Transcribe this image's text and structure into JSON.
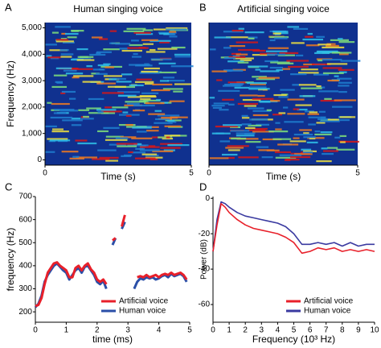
{
  "chart_data": [
    {
      "type": "spectrogram",
      "panel_label": "A",
      "title": "Human singing voice",
      "xlabel": "Time (s)",
      "ylabel": "Frequency (Hz)",
      "xlim": [
        0,
        5
      ],
      "xticks": [
        0,
        5
      ],
      "ylim": [
        -200,
        5200
      ],
      "yticks": [
        0,
        {
          "value": 1000,
          "label": "1,000"
        },
        {
          "value": 2000,
          "label": "2,000"
        },
        {
          "value": 3000,
          "label": "3,000"
        },
        {
          "value": 4000,
          "label": "4,000"
        },
        {
          "value": 5000,
          "label": "5,000"
        }
      ]
    },
    {
      "type": "spectrogram",
      "panel_label": "B",
      "title": "Artificial singing voice",
      "xlabel": "Time (s)",
      "xlim": [
        0,
        5
      ],
      "xticks": [
        0,
        5
      ]
    },
    {
      "type": "line",
      "panel_label": "C",
      "xlabel": "time (ms)",
      "ylabel": "frequency (Hz)",
      "xlim": [
        0,
        5
      ],
      "xticks": [
        0,
        1,
        2,
        3,
        4,
        5
      ],
      "ylim": [
        155,
        700
      ],
      "yticks": [
        200,
        300,
        400,
        500,
        600,
        700
      ],
      "legend": "lower right",
      "x": [
        0,
        0.1,
        0.2,
        0.3,
        0.4,
        0.5,
        0.6,
        0.7,
        0.8,
        0.9,
        1.0,
        1.1,
        1.2,
        1.3,
        1.4,
        1.5,
        1.6,
        1.7,
        1.8,
        1.9,
        2.0,
        2.1,
        2.2,
        2.3,
        2.4,
        2.5,
        2.6,
        2.7,
        2.8,
        2.9,
        3.0,
        3.1,
        3.2,
        3.3,
        3.4,
        3.5,
        3.6,
        3.7,
        3.8,
        3.9,
        4.0,
        4.1,
        4.2,
        4.3,
        4.4,
        4.5,
        4.6,
        4.7,
        4.8,
        4.9
      ],
      "series": [
        {
          "name": "Human voice",
          "color": "#2a4fa8",
          "values": [
            220,
            235,
            270,
            330,
            360,
            380,
            400,
            410,
            395,
            380,
            370,
            340,
            360,
            380,
            390,
            370,
            395,
            400,
            380,
            360,
            330,
            320,
            335,
            300,
            null,
            490,
            520,
            null,
            560,
            590,
            null,
            null,
            300,
            330,
            345,
            340,
            350,
            345,
            350,
            340,
            345,
            355,
            360,
            350,
            365,
            355,
            360,
            365,
            355,
            330
          ]
        },
        {
          "name": "Artificial voice",
          "color": "#e8202a",
          "values": [
            225,
            230,
            260,
            320,
            370,
            390,
            410,
            415,
            400,
            390,
            380,
            350,
            350,
            390,
            400,
            380,
            400,
            410,
            385,
            370,
            340,
            330,
            340,
            320,
            null,
            510,
            520,
            null,
            570,
            620,
            null,
            null,
            null,
            350,
            355,
            350,
            360,
            350,
            355,
            360,
            350,
            360,
            365,
            360,
            370,
            360,
            365,
            370,
            360,
            340
          ]
        }
      ]
    },
    {
      "type": "line",
      "panel_label": "D",
      "xlabel": "Frequency (10³ Hz)",
      "ylabel": "Power (dB)",
      "xlim": [
        0,
        10
      ],
      "xticks": [
        0,
        1,
        2,
        3,
        4,
        5,
        6,
        7,
        8,
        9,
        10
      ],
      "ylim": [
        -70,
        1
      ],
      "yticks": [
        0,
        -20,
        -40,
        -60
      ],
      "legend": "lower right",
      "x": [
        0,
        0.25,
        0.5,
        0.75,
        1,
        1.5,
        2,
        2.5,
        3,
        3.5,
        4,
        4.5,
        5,
        5.5,
        6,
        6.5,
        7,
        7.5,
        8,
        8.5,
        9,
        9.5,
        10
      ],
      "series": [
        {
          "name": "Human voice",
          "color": "#3a3aa0",
          "values": [
            -30,
            -12,
            -2,
            -3,
            -5,
            -8,
            -10,
            -11,
            -12,
            -13,
            -14,
            -16,
            -20,
            -26,
            -26,
            -25,
            -26,
            -25,
            -27,
            -25,
            -27,
            -26,
            -26
          ]
        },
        {
          "name": "Artificial voice",
          "color": "#e8202a",
          "values": [
            -30,
            -15,
            -3,
            -5,
            -8,
            -12,
            -15,
            -17,
            -18,
            -19,
            -20,
            -22,
            -25,
            -31,
            -30,
            -28,
            -29,
            -28,
            -30,
            -29,
            -30,
            -29,
            -30
          ]
        }
      ]
    }
  ]
}
